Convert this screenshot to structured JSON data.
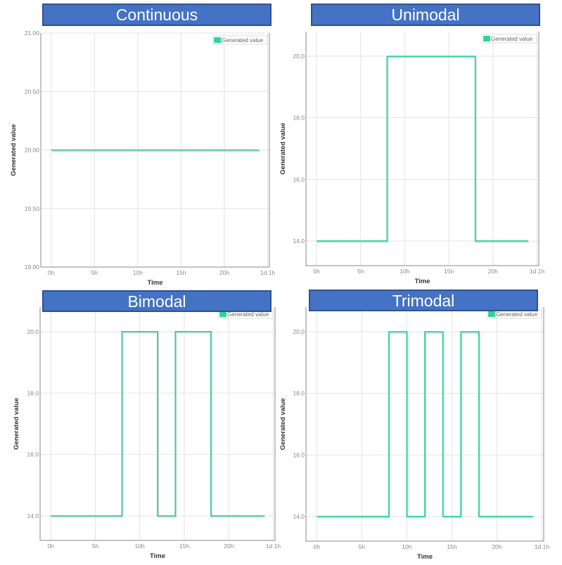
{
  "colors": {
    "series": "#2ED3A0",
    "title_bar": "#4472C4",
    "title_border": "#2F528F",
    "grid": "#e3e3e3"
  },
  "chart_data": [
    {
      "type": "line",
      "title": "Continuous",
      "xlabel": "Time",
      "ylabel": "Generated value",
      "legend": "top-right",
      "grid": true,
      "xlim": [
        -1.2,
        25.2
      ],
      "ylim": [
        19.0,
        21.0
      ],
      "xticks": [
        {
          "v": 0,
          "label": "0h"
        },
        {
          "v": 5,
          "label": "5h"
        },
        {
          "v": 10,
          "label": "10h"
        },
        {
          "v": 15,
          "label": "15h"
        },
        {
          "v": 20,
          "label": "20h"
        },
        {
          "v": 25,
          "label": "1d 1h"
        }
      ],
      "yticks": [
        {
          "v": 19,
          "label": "19.00"
        },
        {
          "v": 19.5,
          "label": "19.50"
        },
        {
          "v": 20,
          "label": "20.00"
        },
        {
          "v": 20.5,
          "label": "20.50"
        },
        {
          "v": 21,
          "label": "21.00"
        }
      ],
      "series": [
        {
          "name": "Generated value",
          "x": [
            0,
            24
          ],
          "y": [
            20,
            20
          ]
        }
      ]
    },
    {
      "type": "line",
      "title": "Unimodal",
      "xlabel": "Time",
      "ylabel": "Generated value",
      "legend": "top-right",
      "grid": true,
      "xlim": [
        -1.2,
        25.2
      ],
      "ylim": [
        13.2,
        20.8
      ],
      "xticks": [
        {
          "v": 0,
          "label": "0h"
        },
        {
          "v": 5,
          "label": "5h"
        },
        {
          "v": 10,
          "label": "10h"
        },
        {
          "v": 15,
          "label": "15h"
        },
        {
          "v": 20,
          "label": "20h"
        },
        {
          "v": 25,
          "label": "1d 1h"
        }
      ],
      "yticks": [
        {
          "v": 14,
          "label": "14.0"
        },
        {
          "v": 16,
          "label": "16.0"
        },
        {
          "v": 18,
          "label": "18.0"
        },
        {
          "v": 20,
          "label": "20.0"
        }
      ],
      "series": [
        {
          "name": "Generated value",
          "x": [
            0,
            8,
            8,
            18,
            18,
            24
          ],
          "y": [
            14,
            14,
            20,
            20,
            14,
            14
          ]
        }
      ]
    },
    {
      "type": "line",
      "title": "Bimodal",
      "xlabel": "Time",
      "ylabel": "Generated value",
      "legend": "top-right",
      "grid": true,
      "xlim": [
        -1.2,
        25.2
      ],
      "ylim": [
        13.2,
        20.8
      ],
      "xticks": [
        {
          "v": 0,
          "label": "0h"
        },
        {
          "v": 5,
          "label": "5h"
        },
        {
          "v": 10,
          "label": "10h"
        },
        {
          "v": 15,
          "label": "15h"
        },
        {
          "v": 20,
          "label": "20h"
        },
        {
          "v": 25,
          "label": "1d 1h"
        }
      ],
      "yticks": [
        {
          "v": 14,
          "label": "14.0"
        },
        {
          "v": 16,
          "label": "16.0"
        },
        {
          "v": 18,
          "label": "18.0"
        },
        {
          "v": 20,
          "label": "20.0"
        }
      ],
      "series": [
        {
          "name": "Generated value",
          "x": [
            0,
            8,
            8,
            12,
            12,
            14,
            14,
            18,
            18,
            24
          ],
          "y": [
            14,
            14,
            20,
            20,
            14,
            14,
            20,
            20,
            14,
            14
          ]
        }
      ]
    },
    {
      "type": "line",
      "title": "Trimodal",
      "xlabel": "Time",
      "ylabel": "Generated value",
      "legend": "top-right",
      "grid": true,
      "xlim": [
        -1.2,
        25.2
      ],
      "ylim": [
        13.2,
        20.8
      ],
      "xticks": [
        {
          "v": 0,
          "label": "0h"
        },
        {
          "v": 5,
          "label": "5h"
        },
        {
          "v": 10,
          "label": "10h"
        },
        {
          "v": 15,
          "label": "15h"
        },
        {
          "v": 20,
          "label": "20h"
        },
        {
          "v": 25,
          "label": "1d 1h"
        }
      ],
      "yticks": [
        {
          "v": 14,
          "label": "14.0"
        },
        {
          "v": 16,
          "label": "16.0"
        },
        {
          "v": 18,
          "label": "18.0"
        },
        {
          "v": 20,
          "label": "20.0"
        }
      ],
      "series": [
        {
          "name": "Generated value",
          "x": [
            0,
            8,
            8,
            10,
            10,
            12,
            12,
            14,
            14,
            16,
            16,
            18,
            18,
            24
          ],
          "y": [
            14,
            14,
            20,
            20,
            14,
            14,
            20,
            20,
            14,
            14,
            20,
            20,
            14,
            14
          ]
        }
      ]
    }
  ]
}
